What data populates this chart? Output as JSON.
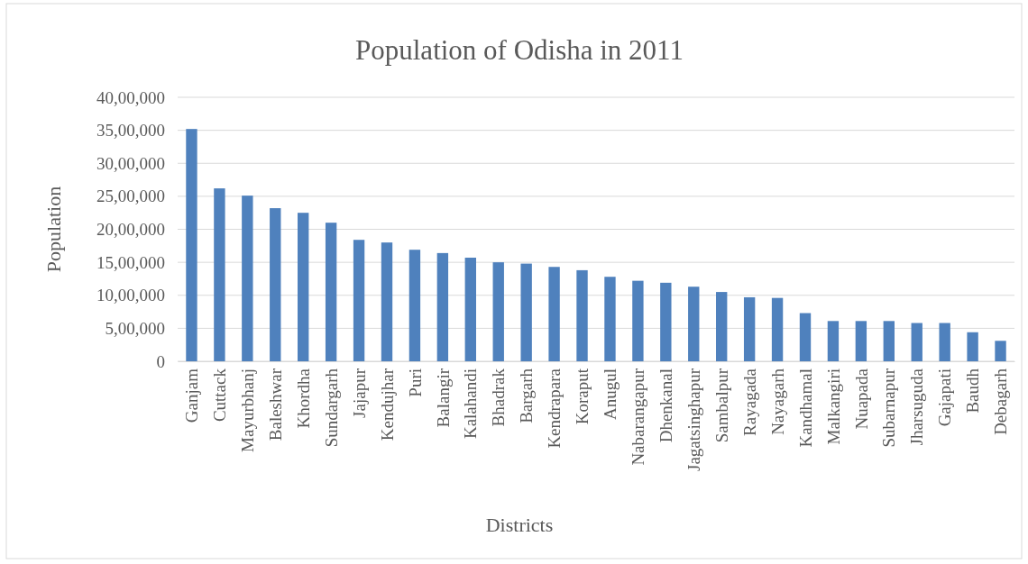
{
  "chart_data": {
    "type": "bar",
    "title": "Population of Odisha in 2011",
    "xlabel": "Districts",
    "ylabel": "Population",
    "categories": [
      "Ganjam",
      "Cuttack",
      "Mayurbhanj",
      "Baleshwar",
      "Khordha",
      "Sundargarh",
      "Jajapur",
      "Kendujhar",
      "Puri",
      "Balangir",
      "Kalahandi",
      "Bhadrak",
      "Bargarh",
      "Kendrapara",
      "Koraput",
      "Anugul",
      "Nabarangapur",
      "Dhenkanal",
      "Jagatsinghapur",
      "Sambalpur",
      "Rayagada",
      "Nayagarh",
      "Kandhamal",
      "Malkangiri",
      "Nuapada",
      "Subarnapur",
      "Jharsuguda",
      "Gajapati",
      "Baudh",
      "Debagarh"
    ],
    "values": [
      3520000,
      2620000,
      2510000,
      2320000,
      2250000,
      2100000,
      1840000,
      1800000,
      1690000,
      1640000,
      1570000,
      1500000,
      1480000,
      1430000,
      1380000,
      1280000,
      1220000,
      1190000,
      1130000,
      1050000,
      970000,
      960000,
      730000,
      610000,
      610000,
      610000,
      580000,
      580000,
      440000,
      310000
    ],
    "color": "#4f81bd",
    "ylim": [
      0,
      4000000
    ],
    "yticks": [
      0,
      {
        "value": 500000,
        "label": "5,00,000"
      },
      {
        "value": 1000000,
        "label": "10,00,000"
      },
      {
        "value": 1500000,
        "label": "15,00,000"
      },
      {
        "value": 2000000,
        "label": "20,00,000"
      },
      {
        "value": 2500000,
        "label": "25,00,000"
      },
      {
        "value": 3000000,
        "label": "30,00,000"
      },
      {
        "value": 3500000,
        "label": "35,00,000"
      },
      {
        "value": 4000000,
        "label": "40,00,000"
      }
    ],
    "grid": "y"
  }
}
